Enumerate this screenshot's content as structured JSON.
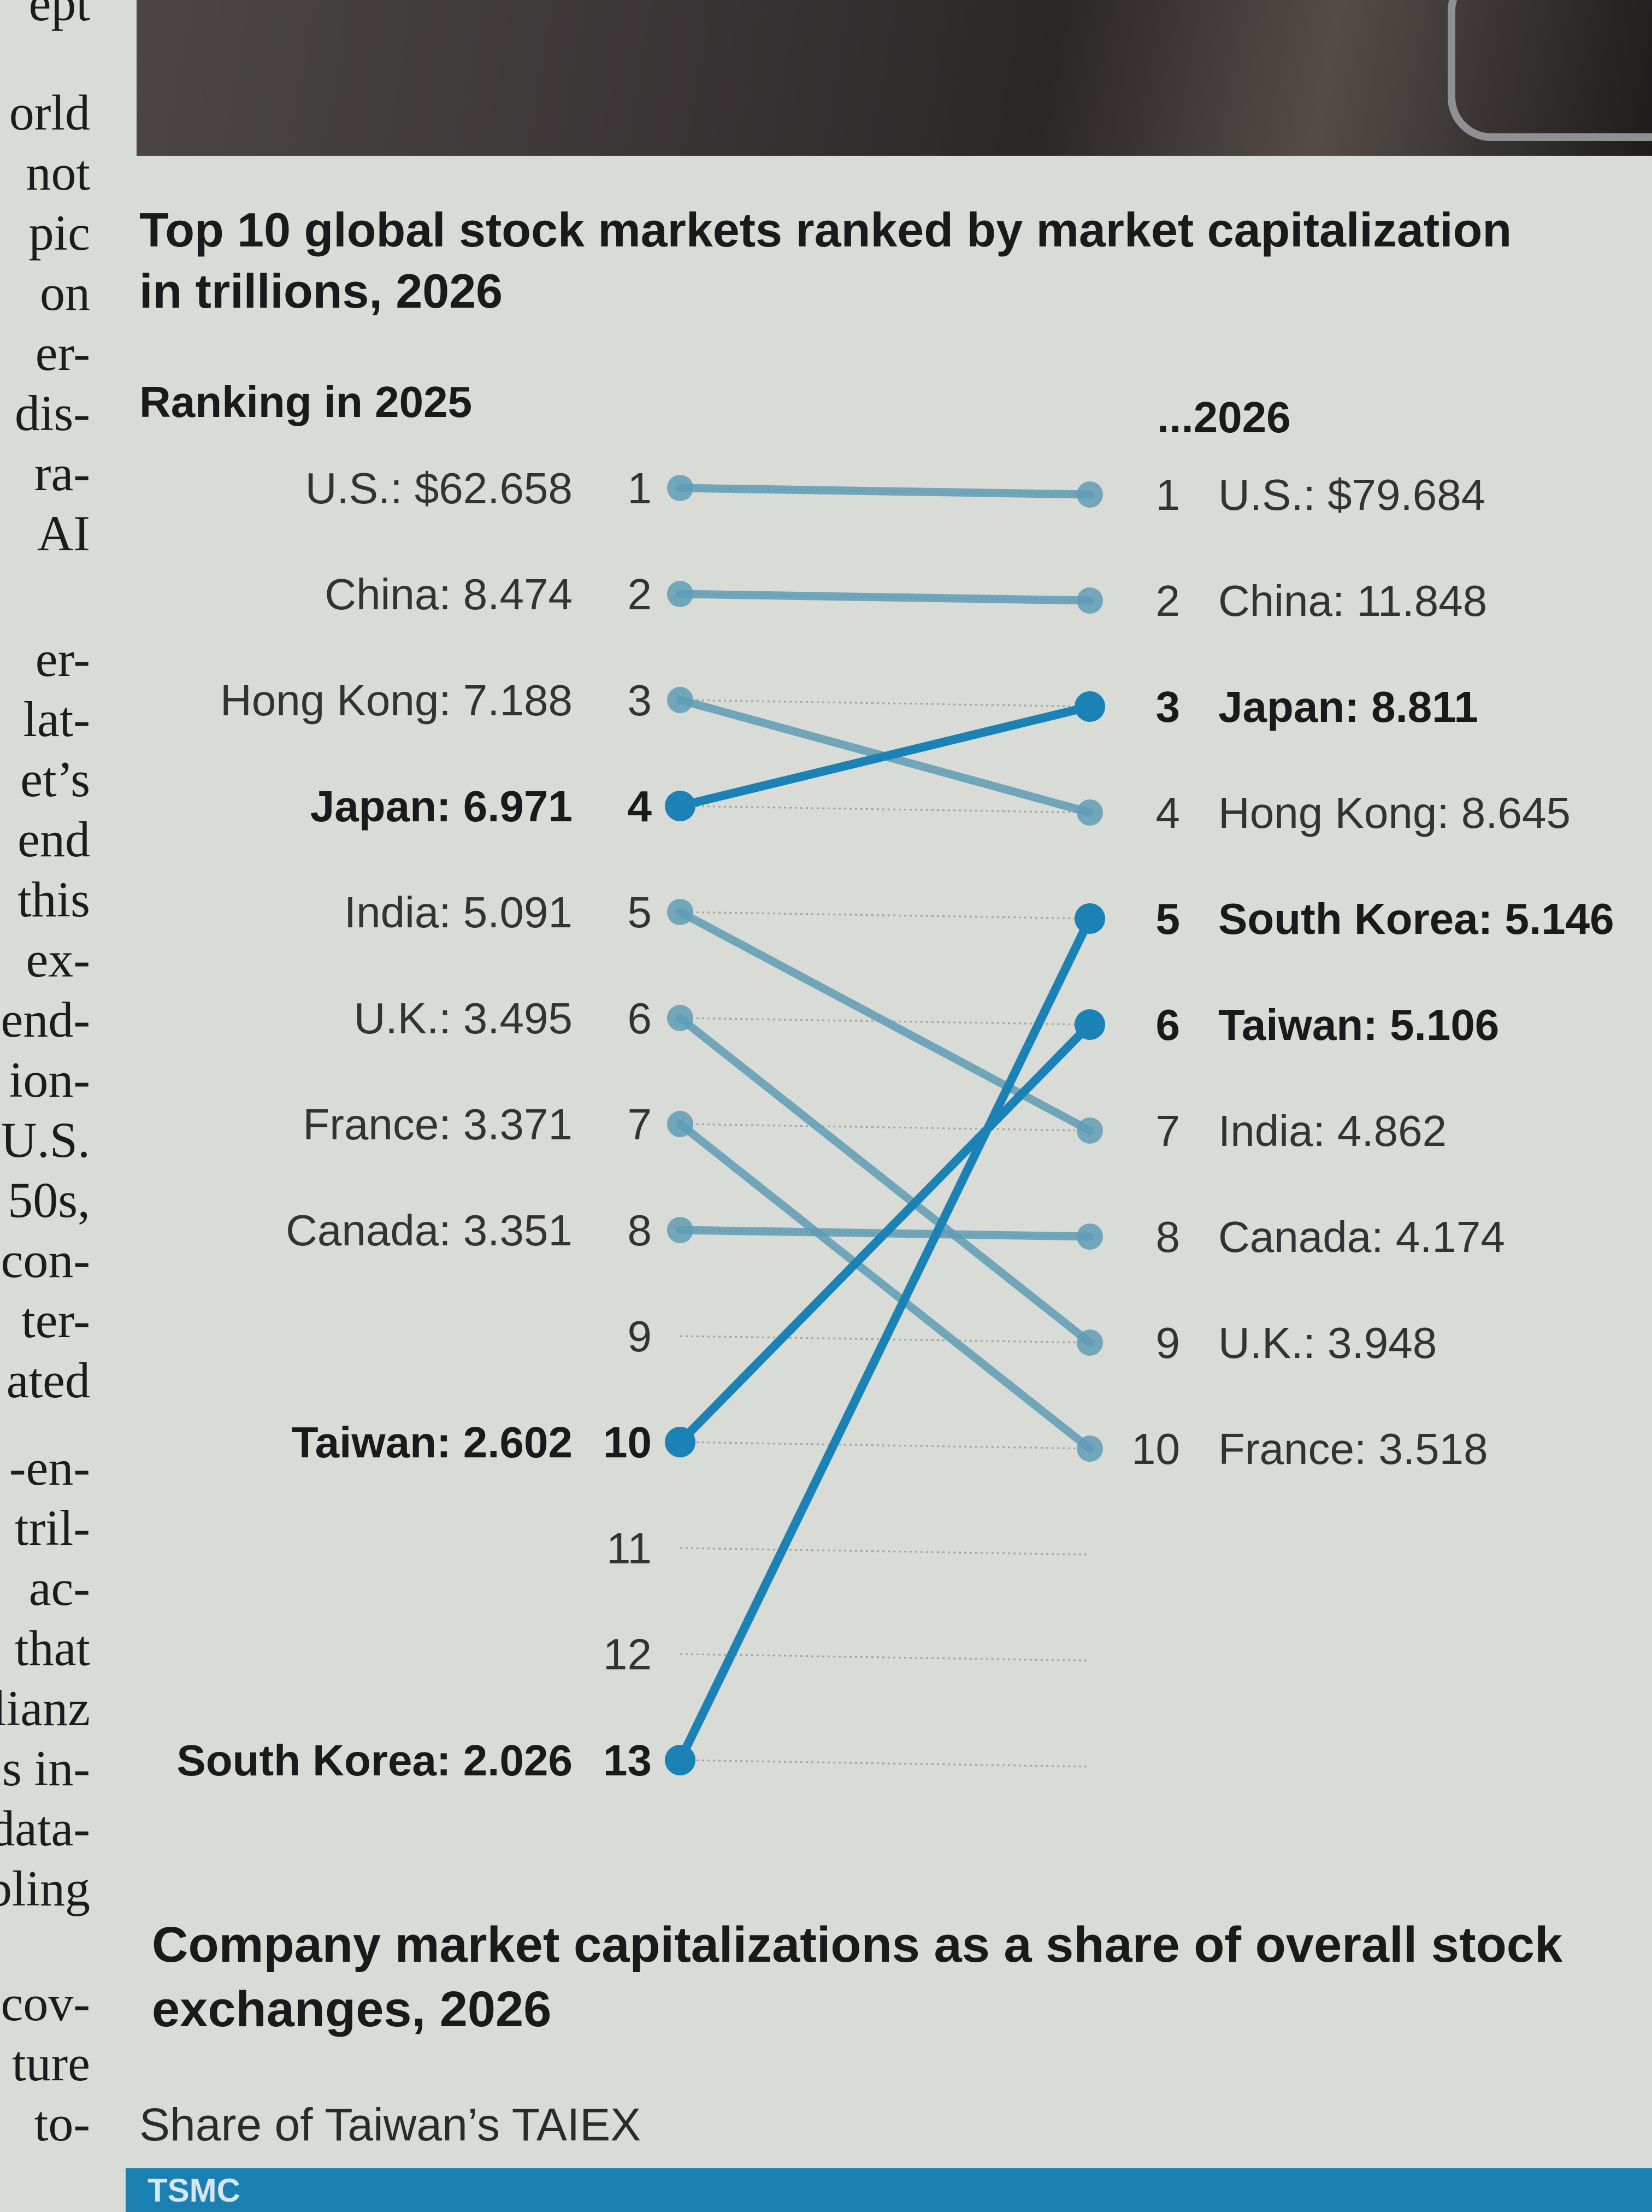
{
  "article_fragments": [
    "ept",
    "orld",
    "not",
    "pic",
    "on",
    "er-",
    "dis-",
    "ra-",
    "AI",
    "er-",
    "lat-",
    "et’s",
    "end",
    "this",
    "ex-",
    "end-",
    "ion-",
    "U.S.",
    "50s,",
    "con-",
    "ter-",
    "ated",
    "-en-",
    "tril-",
    "ac-",
    "that",
    "lianz",
    "s in-",
    "data-",
    "bling",
    "cov-",
    "ture",
    "to-"
  ],
  "chart_title": "Top 10 global stock markets ranked by market capitalization in trillions, 2026",
  "left_heading": "Ranking in 2025",
  "right_heading": "...2026",
  "colors": {
    "light_line": "#5f9cb6",
    "highlight_line": "#1b82b5",
    "text": "#1a1a1a"
  },
  "chart_data": {
    "type": "slope",
    "title": "Top 10 global stock markets ranked by market capitalization in trillions, 2026",
    "xlabel": "",
    "ylabel": "",
    "y_ranks_2025": [
      "1",
      "2",
      "3",
      "4",
      "5",
      "6",
      "7",
      "8",
      "9",
      "10",
      "11",
      "12",
      "13"
    ],
    "series": [
      {
        "name": "U.S.",
        "rank_2025": 1,
        "label_2025": "U.S.: $62.658",
        "value_2025": 62.658,
        "rank_2026": 1,
        "label_2026": "U.S.: $79.684",
        "value_2026": 79.684,
        "highlight": false
      },
      {
        "name": "China",
        "rank_2025": 2,
        "label_2025": "China: 8.474",
        "value_2025": 8.474,
        "rank_2026": 2,
        "label_2026": "China: 11.848",
        "value_2026": 11.848,
        "highlight": false
      },
      {
        "name": "Hong Kong",
        "rank_2025": 3,
        "label_2025": "Hong Kong: 7.188",
        "value_2025": 7.188,
        "rank_2026": 4,
        "label_2026": "Hong Kong: 8.645",
        "value_2026": 8.645,
        "highlight": false
      },
      {
        "name": "Japan",
        "rank_2025": 4,
        "label_2025": "Japan: 6.971",
        "value_2025": 6.971,
        "rank_2026": 3,
        "label_2026": "Japan: 8.811",
        "value_2026": 8.811,
        "highlight": true
      },
      {
        "name": "India",
        "rank_2025": 5,
        "label_2025": "India: 5.091",
        "value_2025": 5.091,
        "rank_2026": 7,
        "label_2026": "India: 4.862",
        "value_2026": 4.862,
        "highlight": false
      },
      {
        "name": "U.K.",
        "rank_2025": 6,
        "label_2025": "U.K.: 3.495",
        "value_2025": 3.495,
        "rank_2026": 9,
        "label_2026": "U.K.: 3.948",
        "value_2026": 3.948,
        "highlight": false
      },
      {
        "name": "France",
        "rank_2025": 7,
        "label_2025": "France: 3.371",
        "value_2025": 3.371,
        "rank_2026": 10,
        "label_2026": "France: 3.518",
        "value_2026": 3.518,
        "highlight": false
      },
      {
        "name": "Canada",
        "rank_2025": 8,
        "label_2025": "Canada: 3.351",
        "value_2025": 3.351,
        "rank_2026": 8,
        "label_2026": "Canada: 4.174",
        "value_2026": 4.174,
        "highlight": false
      },
      {
        "name": "Taiwan",
        "rank_2025": 10,
        "label_2025": "Taiwan: 2.602",
        "value_2025": 2.602,
        "rank_2026": 6,
        "label_2026": "Taiwan: 5.106",
        "value_2026": 5.106,
        "highlight": true
      },
      {
        "name": "South Korea",
        "rank_2025": 13,
        "label_2025": "South Korea: 2.026",
        "value_2025": 2.026,
        "rank_2026": 5,
        "label_2026": "South Korea: 5.146",
        "value_2026": 5.146,
        "highlight": true
      }
    ]
  },
  "second_chart_title": "Company market capitalizations as a share of overall stock exchanges, 2026",
  "second_chart_subtitle": "Share of Taiwan’s TAIEX",
  "bar_label": "TSMC"
}
